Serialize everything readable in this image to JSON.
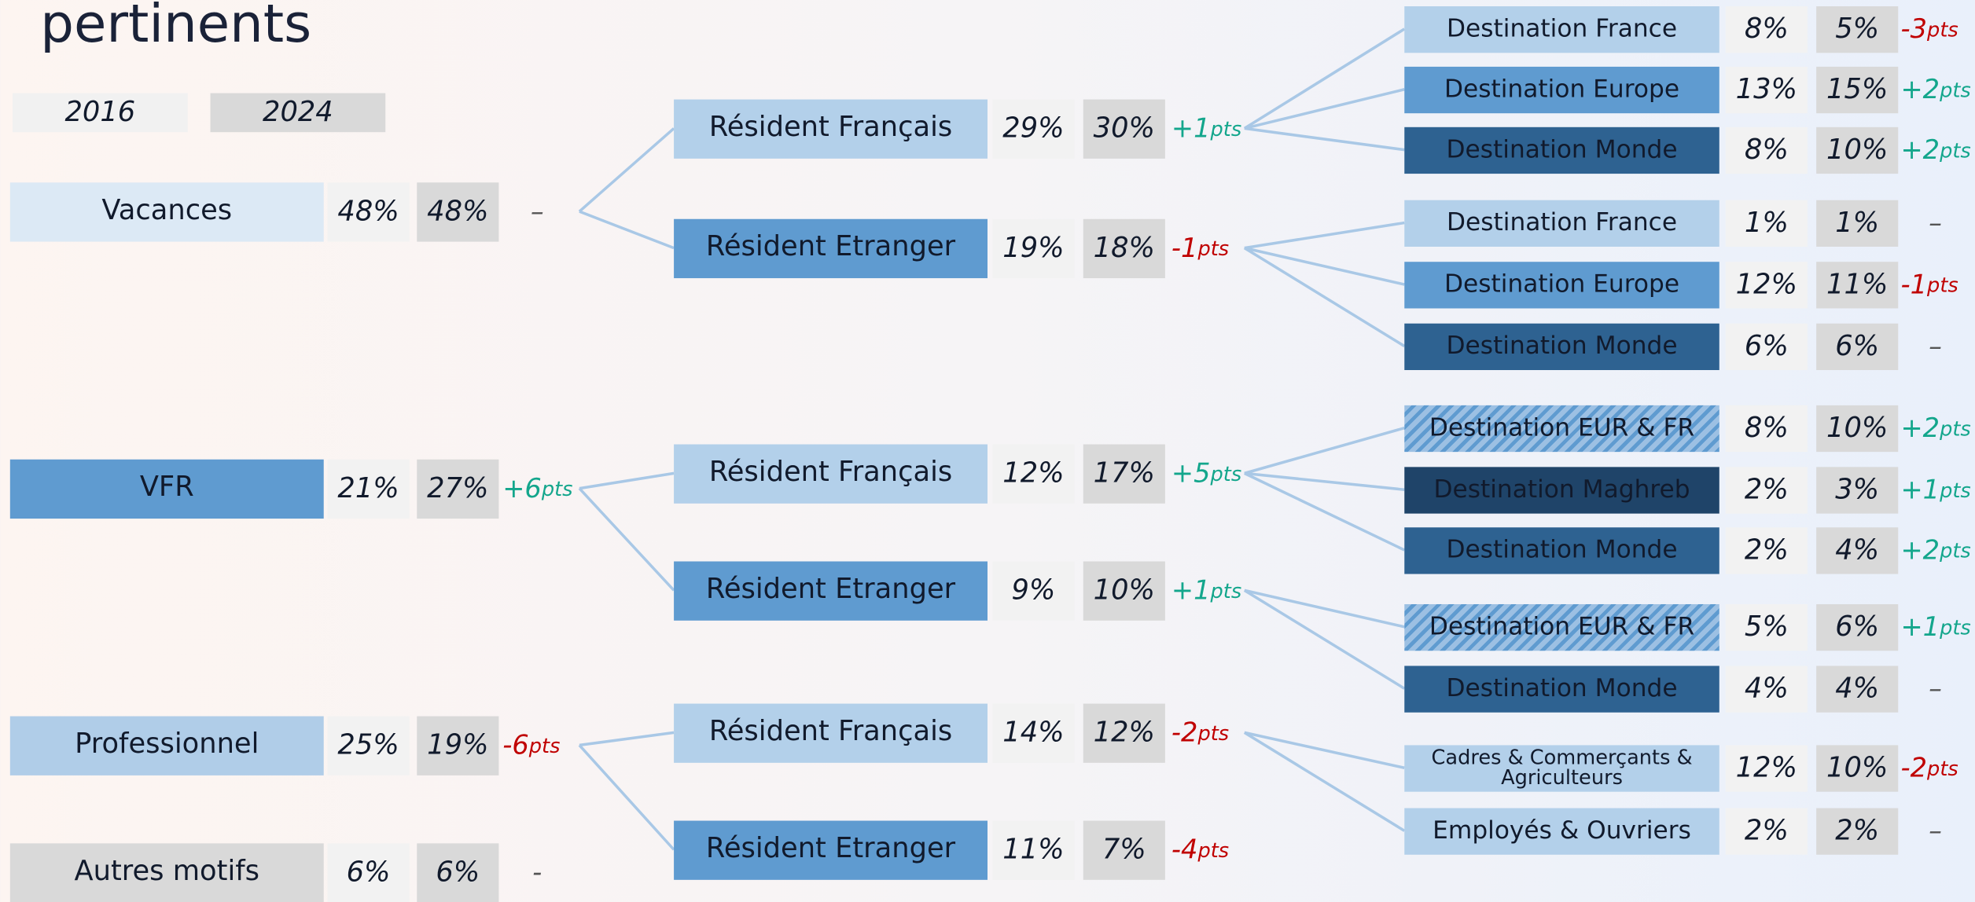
{
  "header": {
    "title": "pertinents"
  },
  "legend": [
    "2016",
    "2024"
  ],
  "nodes": [
    {
      "label": "Vacances",
      "v2016": "48%",
      "v2024": "48%",
      "change": {
        "amount": "–"
      },
      "children": [
        {
          "label": "Résident Français",
          "v2016": "29%",
          "v2024": "30%",
          "change": {
            "amount": "+1",
            "unit": "pts"
          },
          "children": [
            {
              "label": "Destination France",
              "v2016": "8%",
              "v2024": "5%",
              "change": {
                "amount": "-3",
                "unit": "pts"
              }
            },
            {
              "label": "Destination Europe",
              "v2016": "13%",
              "v2024": "15%",
              "change": {
                "amount": "+2",
                "unit": "pts"
              }
            },
            {
              "label": "Destination Monde",
              "v2016": "8%",
              "v2024": "10%",
              "change": {
                "amount": "+2",
                "unit": "pts"
              }
            }
          ]
        },
        {
          "label": "Résident Etranger",
          "v2016": "19%",
          "v2024": "18%",
          "change": {
            "amount": "-1",
            "unit": "pts"
          },
          "children": [
            {
              "label": "Destination France",
              "v2016": "1%",
              "v2024": "1%",
              "change": {
                "amount": "–"
              }
            },
            {
              "label": "Destination Europe",
              "v2016": "12%",
              "v2024": "11%",
              "change": {
                "amount": "-1",
                "unit": "pts"
              }
            },
            {
              "label": "Destination Monde",
              "v2016": "6%",
              "v2024": "6%",
              "change": {
                "amount": "–"
              }
            }
          ]
        }
      ]
    },
    {
      "label": "VFR",
      "v2016": "21%",
      "v2024": "27%",
      "change": {
        "amount": "+6",
        "unit": "pts"
      },
      "children": [
        {
          "label": "Résident Français",
          "v2016": "12%",
          "v2024": "17%",
          "change": {
            "amount": "+5",
            "unit": "pts"
          },
          "children": [
            {
              "label": "Destination EUR & FR",
              "v2016": "8%",
              "v2024": "10%",
              "change": {
                "amount": "+2",
                "unit": "pts"
              }
            },
            {
              "label": "Destination Maghreb",
              "v2016": "2%",
              "v2024": "3%",
              "change": {
                "amount": "+1",
                "unit": "pts"
              }
            },
            {
              "label": "Destination Monde",
              "v2016": "2%",
              "v2024": "4%",
              "change": {
                "amount": "+2",
                "unit": "pts"
              }
            }
          ]
        },
        {
          "label": "Résident Etranger",
          "v2016": "9%",
          "v2024": "10%",
          "change": {
            "amount": "+1",
            "unit": "pts"
          },
          "children": [
            {
              "label": "Destination EUR & FR",
              "v2016": "5%",
              "v2024": "6%",
              "change": {
                "amount": "+1",
                "unit": "pts"
              }
            },
            {
              "label": "Destination Monde",
              "v2016": "4%",
              "v2024": "4%",
              "change": {
                "amount": "–"
              }
            }
          ]
        }
      ]
    },
    {
      "label": "Professionnel",
      "v2016": "25%",
      "v2024": "19%",
      "change": {
        "amount": "-6",
        "unit": "pts"
      },
      "children": [
        {
          "label": "Résident Français",
          "v2016": "14%",
          "v2024": "12%",
          "change": {
            "amount": "-2",
            "unit": "pts"
          },
          "children": [
            {
              "label": "Cadres & Commerçants & Agriculteurs",
              "v2016": "12%",
              "v2024": "10%",
              "change": {
                "amount": "-2",
                "unit": "pts"
              }
            },
            {
              "label": "Employés & Ouvriers",
              "v2016": "2%",
              "v2024": "2%",
              "change": {
                "amount": "–"
              }
            }
          ]
        },
        {
          "label": "Résident Etranger",
          "v2016": "11%",
          "v2024": "7%",
          "change": {
            "amount": "-4",
            "unit": "pts"
          }
        }
      ]
    },
    {
      "label": "Autres motifs",
      "v2016": "6%",
      "v2024": "6%",
      "change": {
        "amount": "-"
      }
    }
  ]
}
